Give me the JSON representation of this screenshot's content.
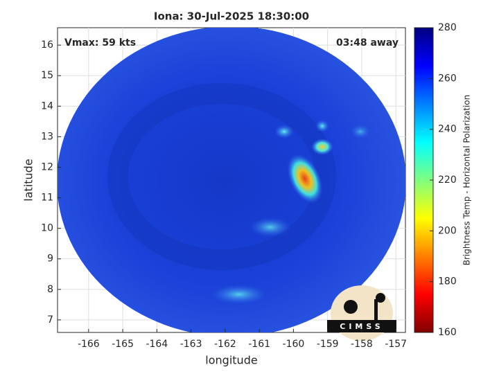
{
  "chart_data": {
    "type": "image",
    "title": "Iona: 30-Jul-2025 18:30:00",
    "xlabel": "longitude",
    "ylabel": "latitude",
    "annotations": [
      "Vmax: 59 kts",
      "03:48 away"
    ],
    "logo": "CIMSS",
    "xlim": [
      -166.91,
      -156.72
    ],
    "xticks": [
      -166,
      -165,
      -164,
      -163,
      -162,
      -161,
      -160,
      -159,
      -158,
      -157
    ],
    "ylim": [
      6.59,
      16.57
    ],
    "yticks": [
      7,
      8,
      9,
      10,
      11,
      12,
      13,
      14,
      15,
      16
    ],
    "grid": true,
    "colorbar": {
      "label": "Brightness Temp - Horizontal Polarization",
      "lim": [
        160,
        280
      ],
      "ticks": [
        160,
        180,
        200,
        220,
        240,
        260,
        280
      ]
    }
  }
}
